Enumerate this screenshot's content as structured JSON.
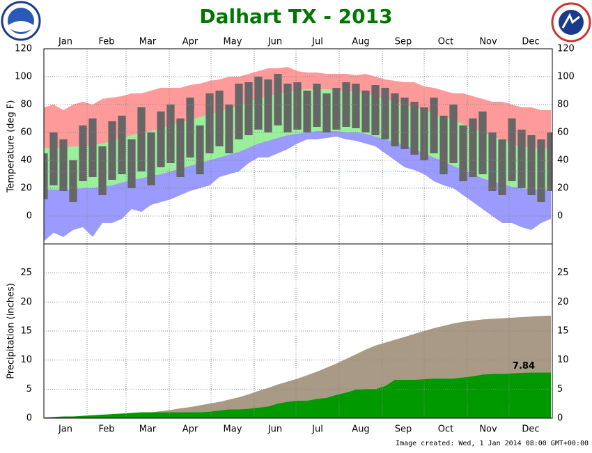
{
  "title": "Dalhart TX - 2013",
  "footer": "Image created: Wed, 1 Jan 2014 08:00 GMT+00:00",
  "chart_data": [
    {
      "type": "range",
      "ylabel": "Temperature (deg F)",
      "xaxis_position": "top",
      "grid": true,
      "x": [
        1,
        8,
        15,
        22,
        29,
        36,
        43,
        50,
        57,
        64,
        71,
        78,
        85,
        92,
        99,
        106,
        113,
        120,
        127,
        134,
        141,
        148,
        155,
        162,
        169,
        176,
        183,
        190,
        197,
        204,
        211,
        218,
        225,
        232,
        239,
        246,
        253,
        260,
        267,
        274,
        281,
        288,
        295,
        302,
        309,
        316,
        323,
        330,
        337,
        344,
        351,
        358,
        365
      ],
      "xlim": [
        1,
        366
      ],
      "xticks": [
        {
          "value": 1,
          "label": "Jan"
        },
        {
          "value": 32,
          "label": "Feb"
        },
        {
          "value": 60,
          "label": "Mar"
        },
        {
          "value": 91,
          "label": "Apr"
        },
        {
          "value": 121,
          "label": "May"
        },
        {
          "value": 152,
          "label": "Jun"
        },
        {
          "value": 182,
          "label": "Jul"
        },
        {
          "value": 213,
          "label": "Aug"
        },
        {
          "value": 244,
          "label": "Sep"
        },
        {
          "value": 274,
          "label": "Oct"
        },
        {
          "value": 305,
          "label": "Nov"
        },
        {
          "value": 335,
          "label": "Dec"
        }
      ],
      "ylim": [
        -20,
        120
      ],
      "yticks": [
        0,
        20,
        40,
        60,
        80,
        100,
        120
      ],
      "hline": {
        "value": 32,
        "color": "#00cccc"
      },
      "series": [
        {
          "color": "#ff9a9a",
          "values": [
            78,
            80,
            76,
            80,
            82,
            80,
            84,
            85,
            86,
            88,
            88,
            90,
            92,
            92,
            92,
            94,
            95,
            97,
            98,
            100,
            100,
            102,
            104,
            106,
            106,
            107,
            104,
            103,
            103,
            102,
            102,
            102,
            101,
            102,
            100,
            98,
            97,
            96,
            96,
            93,
            92,
            90,
            88,
            88,
            86,
            84,
            82,
            82,
            80,
            78,
            78,
            76,
            76
          ]
        },
        {
          "color": "#9af09a",
          "values": [
            49,
            49,
            49,
            50,
            50,
            51,
            52,
            54,
            56,
            58,
            60,
            61,
            63,
            65,
            67,
            69,
            71,
            73,
            75,
            77,
            79,
            82,
            84,
            86,
            88,
            89,
            90,
            91,
            91,
            91,
            90,
            90,
            89,
            88,
            86,
            84,
            82,
            80,
            78,
            76,
            73,
            71,
            69,
            66,
            63,
            60,
            57,
            55,
            52,
            50,
            49,
            49,
            48
          ]
        },
        {
          "color": "#9a9aff",
          "values": [
            19,
            19,
            19,
            19,
            20,
            20,
            21,
            22,
            24,
            26,
            27,
            29,
            30,
            32,
            34,
            36,
            38,
            40,
            42,
            44,
            46,
            49,
            52,
            54,
            56,
            58,
            59,
            60,
            61,
            61,
            61,
            60,
            60,
            59,
            57,
            55,
            53,
            51,
            48,
            45,
            42,
            39,
            36,
            33,
            30,
            27,
            25,
            23,
            21,
            20,
            19,
            19,
            19
          ]
        },
        {
          "color": "#ffffff",
          "values": [
            -18,
            -12,
            -15,
            -10,
            -8,
            -15,
            -5,
            -5,
            -2,
            5,
            3,
            8,
            10,
            12,
            15,
            18,
            20,
            22,
            28,
            30,
            32,
            38,
            42,
            42,
            45,
            48,
            52,
            55,
            55,
            56,
            57,
            55,
            54,
            52,
            50,
            45,
            40,
            35,
            33,
            30,
            25,
            22,
            20,
            15,
            10,
            5,
            0,
            -5,
            -5,
            -8,
            -10,
            -5,
            -2
          ]
        }
      ],
      "actual": {
        "color": "#666666",
        "high": [
          45,
          60,
          55,
          40,
          65,
          70,
          50,
          68,
          72,
          55,
          78,
          60,
          75,
          80,
          70,
          85,
          65,
          88,
          90,
          80,
          95,
          96,
          100,
          98,
          102,
          95,
          96,
          90,
          95,
          88,
          92,
          96,
          95,
          90,
          94,
          92,
          88,
          85,
          82,
          78,
          85,
          72,
          80,
          65,
          70,
          75,
          60,
          55,
          70,
          62,
          58,
          55,
          60
        ],
        "low": [
          12,
          22,
          18,
          10,
          25,
          28,
          15,
          26,
          30,
          20,
          32,
          22,
          35,
          38,
          28,
          42,
          30,
          45,
          50,
          45,
          55,
          58,
          62,
          60,
          65,
          60,
          62,
          60,
          64,
          60,
          62,
          64,
          63,
          60,
          58,
          55,
          50,
          48,
          44,
          40,
          45,
          30,
          38,
          25,
          28,
          30,
          18,
          15,
          25,
          20,
          15,
          10,
          18
        ]
      }
    },
    {
      "type": "area",
      "ylabel": "Precipitation (inches)",
      "xaxis_position": "bottom",
      "grid": true,
      "x": [
        1,
        8,
        15,
        22,
        29,
        36,
        43,
        50,
        57,
        64,
        71,
        78,
        85,
        92,
        99,
        106,
        113,
        120,
        127,
        134,
        141,
        148,
        155,
        162,
        169,
        176,
        183,
        190,
        197,
        204,
        211,
        218,
        225,
        232,
        239,
        246,
        253,
        260,
        267,
        274,
        281,
        288,
        295,
        302,
        309,
        316,
        323,
        330,
        337,
        344,
        351,
        358,
        365
      ],
      "xlim": [
        1,
        366
      ],
      "xticks": [
        {
          "value": 1,
          "label": "Jan"
        },
        {
          "value": 32,
          "label": "Feb"
        },
        {
          "value": 60,
          "label": "Mar"
        },
        {
          "value": 91,
          "label": "Apr"
        },
        {
          "value": 121,
          "label": "May"
        },
        {
          "value": 152,
          "label": "Jun"
        },
        {
          "value": 182,
          "label": "Jul"
        },
        {
          "value": 213,
          "label": "Aug"
        },
        {
          "value": 244,
          "label": "Sep"
        },
        {
          "value": 274,
          "label": "Oct"
        },
        {
          "value": 305,
          "label": "Nov"
        },
        {
          "value": 335,
          "label": "Dec"
        }
      ],
      "ylim": [
        0,
        30
      ],
      "yticks": [
        0,
        5,
        10,
        15,
        20,
        25
      ],
      "series": [
        {
          "color": "#a89a84",
          "values": [
            0.0,
            0.1,
            0.15,
            0.2,
            0.3,
            0.35,
            0.4,
            0.5,
            0.6,
            0.8,
            0.9,
            1.0,
            1.2,
            1.4,
            1.7,
            1.9,
            2.2,
            2.5,
            2.8,
            3.2,
            3.6,
            4.1,
            4.7,
            5.2,
            5.8,
            6.3,
            6.8,
            7.4,
            8.0,
            8.7,
            9.4,
            10.2,
            11.0,
            11.8,
            12.5,
            13.0,
            13.5,
            14.0,
            14.5,
            15.0,
            15.5,
            15.9,
            16.3,
            16.6,
            16.8,
            17.0,
            17.1,
            17.2,
            17.3,
            17.4,
            17.5,
            17.6,
            17.65
          ]
        },
        {
          "color": "#009900",
          "values": [
            0.1,
            0.2,
            0.3,
            0.3,
            0.4,
            0.5,
            0.6,
            0.7,
            0.8,
            0.9,
            1.0,
            1.0,
            1.0,
            1.0,
            1.0,
            1.0,
            1.0,
            1.1,
            1.3,
            1.5,
            1.5,
            1.6,
            1.8,
            2.0,
            2.5,
            2.8,
            3.0,
            3.0,
            3.3,
            3.5,
            4.0,
            4.4,
            4.9,
            5.0,
            5.0,
            5.5,
            6.6,
            6.6,
            6.6,
            6.7,
            6.8,
            6.8,
            6.8,
            7.0,
            7.2,
            7.5,
            7.6,
            7.6,
            7.7,
            7.8,
            7.84,
            7.84,
            7.84
          ]
        }
      ]
    }
  ]
}
